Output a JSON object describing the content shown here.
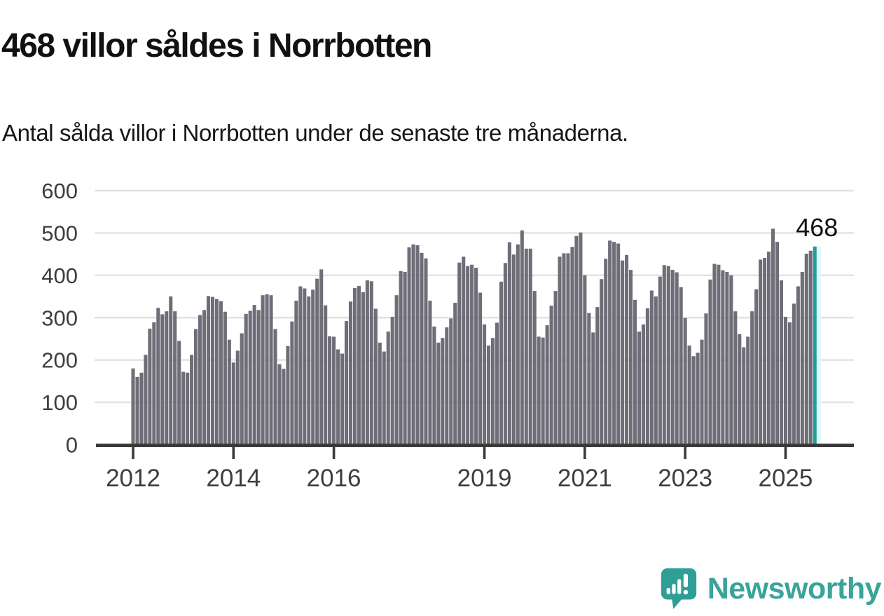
{
  "title": "468 villor såldes i Norrbotten",
  "subtitle": "Antal sålda villor i Norrbotten under de senaste tre månaderna.",
  "annotation": {
    "last_value_label": "468"
  },
  "logo": {
    "text": "Newsworthy"
  },
  "colors": {
    "bar": "#6f6e78",
    "highlight": "#1f9e98",
    "highlight_glow": "#d9fbf9",
    "grid": "#e2e2e2",
    "axis": "#3a3a3a",
    "tick_label": "#3d3d3d",
    "annotation": "#111111",
    "logo": "#3aa39a"
  },
  "chart_data": {
    "type": "bar",
    "title": "468 villor såldes i Norrbotten",
    "subtitle": "Antal sålda villor i Norrbotten under de senaste tre månaderna.",
    "ylabel": "",
    "xlabel": "",
    "ylim": [
      0,
      600
    ],
    "yticks": [
      0,
      100,
      200,
      300,
      400,
      500,
      600
    ],
    "xticks": [
      {
        "label": "2012",
        "year": 2012
      },
      {
        "label": "2014",
        "year": 2014
      },
      {
        "label": "2016",
        "year": 2016
      },
      {
        "label": "2019",
        "year": 2019
      },
      {
        "label": "2021",
        "year": 2021
      },
      {
        "label": "2023",
        "year": 2023
      },
      {
        "label": "2025",
        "year": 2025
      }
    ],
    "grid": "horizontal",
    "legend": "none",
    "frequency": "monthly",
    "start": "2012-01",
    "end": "2025-08",
    "highlight_last_bar": true,
    "last_value": 468,
    "values": [
      180,
      160,
      170,
      212,
      274,
      289,
      323,
      308,
      315,
      350,
      315,
      245,
      172,
      170,
      212,
      273,
      306,
      318,
      351,
      349,
      344,
      339,
      314,
      248,
      194,
      222,
      263,
      309,
      316,
      330,
      318,
      353,
      355,
      353,
      273,
      190,
      179,
      233,
      291,
      340,
      374,
      369,
      350,
      366,
      392,
      414,
      329,
      256,
      255,
      225,
      215,
      292,
      338,
      370,
      375,
      360,
      388,
      386,
      321,
      241,
      220,
      267,
      302,
      353,
      410,
      408,
      466,
      473,
      471,
      453,
      440,
      340,
      279,
      241,
      252,
      277,
      298,
      335,
      430,
      444,
      422,
      425,
      418,
      359,
      284,
      234,
      252,
      288,
      385,
      429,
      478,
      449,
      473,
      506,
      463,
      463,
      363,
      255,
      253,
      282,
      328,
      363,
      444,
      452,
      452,
      467,
      493,
      501,
      400,
      311,
      265,
      325,
      391,
      439,
      482,
      479,
      475,
      435,
      448,
      413,
      342,
      267,
      284,
      322,
      364,
      350,
      397,
      424,
      422,
      413,
      407,
      372,
      299,
      234,
      209,
      217,
      248,
      310,
      390,
      427,
      425,
      412,
      408,
      400,
      315,
      261,
      230,
      255,
      315,
      367,
      437,
      441,
      456,
      510,
      479,
      388,
      302,
      289,
      333,
      374,
      408,
      451,
      458,
      468
    ]
  }
}
